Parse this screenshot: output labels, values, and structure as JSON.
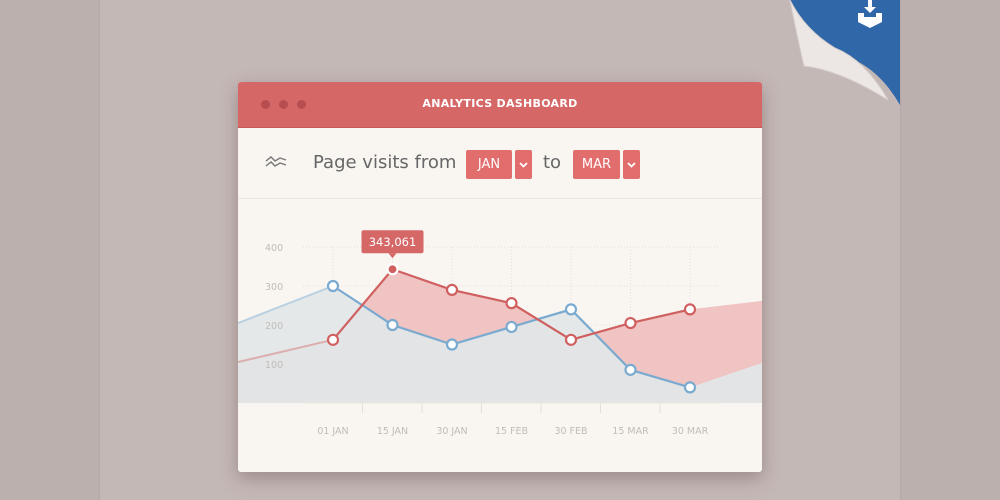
{
  "window": {
    "title": "ANALYTICS DASHBOARD"
  },
  "controls": {
    "label": "Page visits from",
    "from_value": "JAN",
    "to_label": "to",
    "to_value": "MAR",
    "icon": "trend-lines-icon"
  },
  "corner": {
    "icon": "download-icon",
    "color": "#2f67a8"
  },
  "colors": {
    "accent": "#d56767",
    "red_series": "#d06060",
    "blue_series": "#7aaad0"
  },
  "tooltip": {
    "value": "343,061"
  },
  "chart_data": {
    "type": "area",
    "categories": [
      "01 JAN",
      "15 JAN",
      "30 JAN",
      "15 FEB",
      "30 FEB",
      "15 MAR",
      "30 MAR"
    ],
    "y_ticks": [
      "100",
      "200",
      "300",
      "400"
    ],
    "ylim": [
      0,
      400
    ],
    "grid": true,
    "series": [
      {
        "color": "#7aaad0",
        "values": [
          300,
          200,
          150,
          195,
          240,
          85,
          40
        ],
        "offscreen_start": 205,
        "offscreen_end": 103
      },
      {
        "color": "#d06060",
        "values": [
          162,
          343,
          290,
          256,
          162,
          205,
          240
        ],
        "offscreen_start": 105,
        "offscreen_end": 262
      }
    ],
    "highlight": {
      "series": 1,
      "index": 1,
      "label": "343,061"
    }
  }
}
